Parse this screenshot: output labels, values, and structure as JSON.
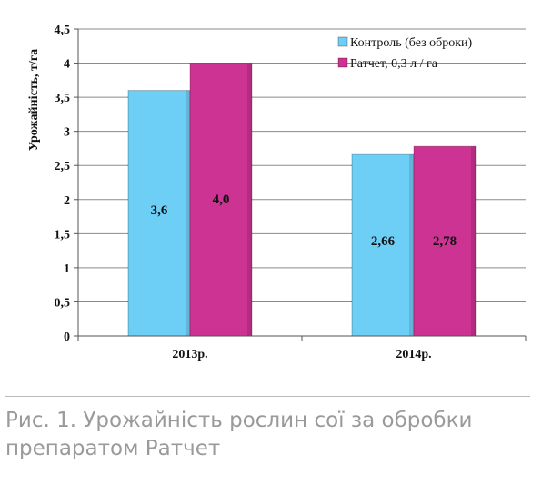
{
  "caption": "Рис. 1. Урожайність рослин сої за обробки препаратом Ратчет",
  "chart_data": {
    "type": "bar",
    "title": "",
    "xlabel": "",
    "ylabel": "Урожайність, т/га",
    "ylim": [
      0,
      4.5
    ],
    "yticks": [
      {
        "value": 0,
        "label": "0"
      },
      {
        "value": 0.5,
        "label": "0,5"
      },
      {
        "value": 1,
        "label": "1"
      },
      {
        "value": 1.5,
        "label": "1,5"
      },
      {
        "value": 2,
        "label": "2"
      },
      {
        "value": 2.5,
        "label": "2,5"
      },
      {
        "value": 3,
        "label": "3"
      },
      {
        "value": 3.5,
        "label": "3,5"
      },
      {
        "value": 4,
        "label": "4"
      },
      {
        "value": 4.5,
        "label": "4,5"
      }
    ],
    "categories": [
      "2013р.",
      "2014р."
    ],
    "series": [
      {
        "name": "Контроль (без оброки)",
        "color": "#6ecff6",
        "values": [
          3.6,
          2.66
        ],
        "labels": [
          "3,6",
          "2,66"
        ]
      },
      {
        "name": "Ратчет, 0,3 л / га",
        "color": "#cc3393",
        "values": [
          4.0,
          2.78
        ],
        "labels": [
          "4,0",
          "2,78"
        ]
      }
    ],
    "grid": true,
    "legend_position": "top-right"
  }
}
